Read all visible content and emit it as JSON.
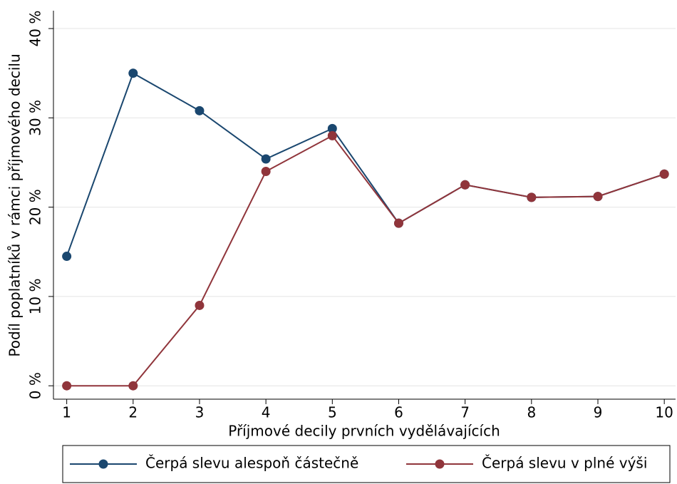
{
  "chart_data": {
    "type": "line",
    "xlabel": "Příjmové decily prvních vydělávajících",
    "ylabel": "Podíl poplatníků v rámci příjmového decilu",
    "x": [
      1,
      2,
      3,
      4,
      5,
      6,
      7,
      8,
      9,
      10
    ],
    "series": [
      {
        "name": "Čerpá slevu alespoň částečně",
        "color": "#1a476f",
        "values": [
          14.5,
          35,
          30.8,
          25.4,
          28.8,
          18.2,
          22.5,
          21.1,
          21.2,
          23.7
        ]
      },
      {
        "name": "Čerpá slevu v plné výši",
        "color": "#90353b",
        "values": [
          0,
          0,
          9,
          24,
          28,
          18.2,
          22.5,
          21.1,
          21.2,
          23.7
        ]
      }
    ],
    "xlim": [
      0.8,
      10.17
    ],
    "xticks": [
      1,
      2,
      3,
      4,
      5,
      6,
      7,
      8,
      9,
      10
    ],
    "ylim": [
      -1.5,
      42
    ],
    "yticks": [
      {
        "value": 0,
        "label": "0 %"
      },
      {
        "value": 10,
        "label": "10 %"
      },
      {
        "value": 20,
        "label": "20 %"
      },
      {
        "value": 30,
        "label": "30 %"
      },
      {
        "value": 40,
        "label": "40 %"
      }
    ],
    "grid": true,
    "legend": "bottom"
  }
}
